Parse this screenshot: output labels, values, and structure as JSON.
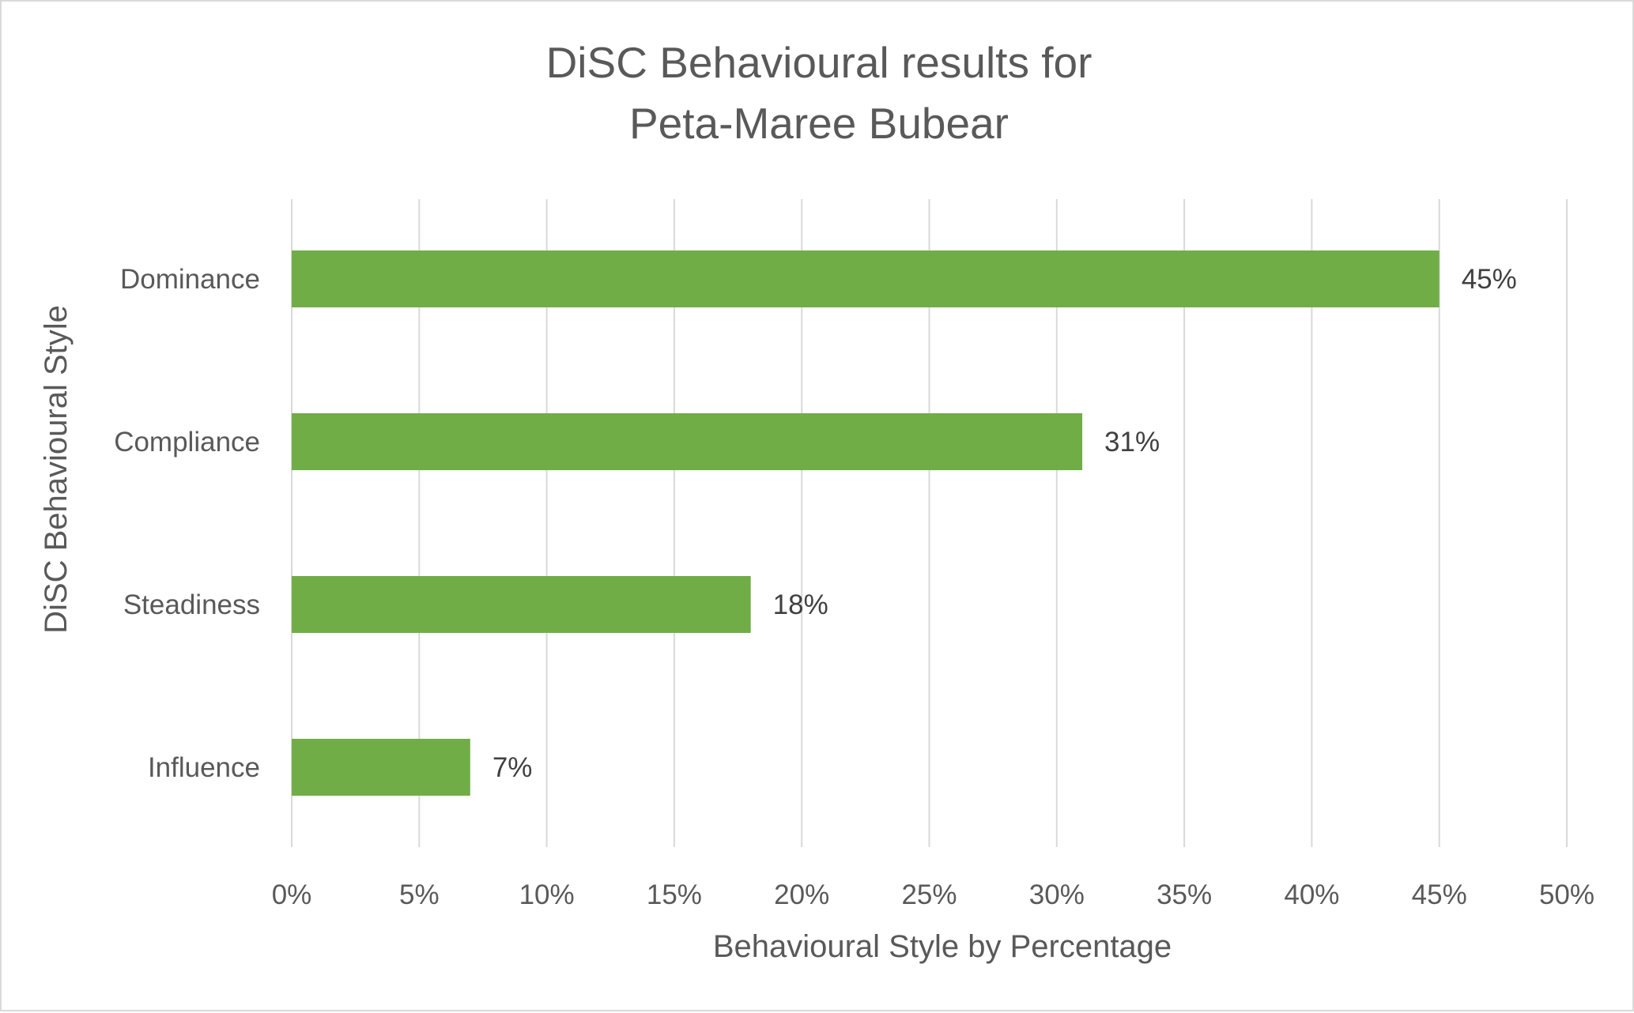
{
  "chart_data": {
    "type": "bar",
    "orientation": "horizontal",
    "title_lines": [
      "DiSC Behavioural results for",
      "Peta-Maree Bubear"
    ],
    "xlabel": "Behavioural Style by Percentage",
    "ylabel": "DiSC Behavioural Style",
    "categories": [
      "Dominance",
      "Compliance",
      "Steadiness",
      "Influence"
    ],
    "values": [
      45,
      31,
      18,
      7
    ],
    "data_labels": [
      "45%",
      "31%",
      "18%",
      "7%"
    ],
    "xlim": [
      0,
      50
    ],
    "x_ticks": [
      0,
      5,
      10,
      15,
      20,
      25,
      30,
      35,
      40,
      45,
      50
    ],
    "x_tick_labels": [
      "0%",
      "5%",
      "10%",
      "15%",
      "20%",
      "25%",
      "30%",
      "35%",
      "40%",
      "45%",
      "50%"
    ],
    "grid": "vertical",
    "legend": "none",
    "bar_color": "#70ad47",
    "grid_color": "#d9d9d9",
    "text_color": "#595959"
  }
}
